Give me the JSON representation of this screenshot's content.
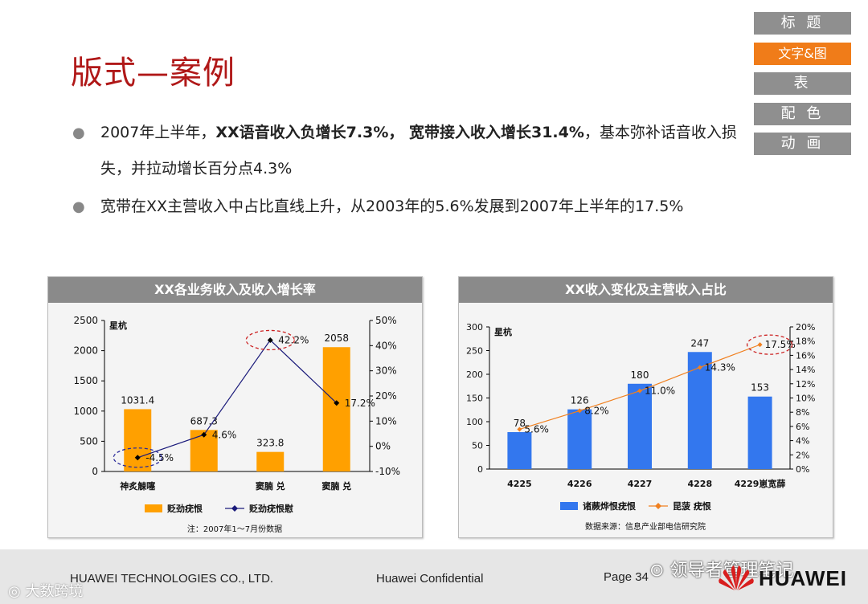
{
  "page": {
    "title": "版式—案例",
    "nav": [
      "标 题",
      "文字&图",
      "表",
      "配 色",
      "动 画"
    ],
    "bullets": [
      {
        "parts": [
          {
            "text": "2007年上半年，",
            "bold": false
          },
          {
            "text": "XX语音收入负增长7.3%，",
            "bold": true
          },
          {
            "text": " 宽带接入收入增长31.4%",
            "bold": true
          },
          {
            "text": "，基本弥补话音收入损失，并拉动增长百分点4.3%",
            "bold": false
          }
        ]
      },
      {
        "parts": [
          {
            "text": "宽带在XX主营收入中占比直线上升，从2003年的5.6%发展到2007年上半年的17.5%",
            "bold": false
          }
        ]
      }
    ]
  },
  "chart1": {
    "header": "XX各业务收入及收入增长率",
    "unit_label": "星杭",
    "note": "注：2007年1～7月份数据"
  },
  "chart2": {
    "header": "XX收入变化及主营收入占比",
    "unit_label": "星杭",
    "note": "数据来源：信息产业部电信研究院"
  },
  "chart_data": [
    {
      "type": "bar",
      "title": "XX各业务收入及收入增长率",
      "categories": [
        "神炙觫噻",
        "",
        "窦腩 兑",
        "窦腩 兑"
      ],
      "series": [
        {
          "name": "贬劲疣恨",
          "kind": "bar",
          "axis": "left",
          "values": [
            1031.4,
            687.3,
            323.8,
            2058
          ]
        },
        {
          "name": "贬劲疣恨慰",
          "kind": "line",
          "axis": "right",
          "values": [
            -4.5,
            4.6,
            42.2,
            17.2
          ]
        }
      ],
      "bar_labels": [
        "1031.4",
        "687.3",
        "323.8",
        "2058"
      ],
      "line_labels": [
        "-4.5%",
        "4.6%",
        "42.2%",
        "17.2%"
      ],
      "y_left": {
        "lim": [
          0,
          2500
        ],
        "ticks": [
          "0",
          "500",
          "1000",
          "1500",
          "2000",
          "2500"
        ]
      },
      "y_right": {
        "lim": [
          -10,
          50
        ],
        "ticks": [
          "-10%",
          "0%",
          "10%",
          "20%",
          "30%",
          "40%",
          "50%"
        ]
      },
      "highlighted": [
        0,
        2
      ],
      "colors": {
        "bar": "#ffa000",
        "line": "#1a1a7a",
        "highlight": "#cc2222",
        "highlight_alt": "#2a2a9a"
      },
      "legend": "bottom"
    },
    {
      "type": "bar",
      "title": "XX收入变化及主营收入占比",
      "categories": [
        "4225",
        "4226",
        "4227",
        "4228",
        "4229崽宽薛"
      ],
      "series": [
        {
          "name": "诸蕨烨恨疣恨",
          "kind": "bar",
          "axis": "left",
          "values": [
            78,
            126,
            180,
            247,
            153
          ]
        },
        {
          "name": "昆菠  疣恨",
          "kind": "line",
          "axis": "right",
          "values": [
            5.6,
            8.2,
            11.0,
            14.3,
            17.5
          ]
        }
      ],
      "bar_labels": [
        "78",
        "126",
        "180",
        "247",
        "153"
      ],
      "line_labels": [
        "5.6%",
        "8.2%",
        "11.0%",
        "14.3%",
        "17.5%"
      ],
      "y_left": {
        "lim": [
          0,
          300
        ],
        "ticks": [
          "0",
          "50",
          "100",
          "150",
          "200",
          "250",
          "300"
        ]
      },
      "y_right": {
        "lim": [
          0,
          20
        ],
        "ticks": [
          "0%",
          "2%",
          "4%",
          "6%",
          "8%",
          "10%",
          "12%",
          "14%",
          "16%",
          "18%",
          "20%"
        ]
      },
      "highlighted": [
        4
      ],
      "colors": {
        "bar": "#3377ee",
        "line": "#f08020",
        "highlight": "#cc2222"
      },
      "legend": "bottom"
    }
  ],
  "footer": {
    "company": "HUAWEI TECHNOLOGIES CO., LTD.",
    "confidential": "Huawei Confidential",
    "page": "Page 34",
    "wechat": "领导者管理笔记",
    "watermark": "大数跨境",
    "brand": "HUAWEI"
  }
}
